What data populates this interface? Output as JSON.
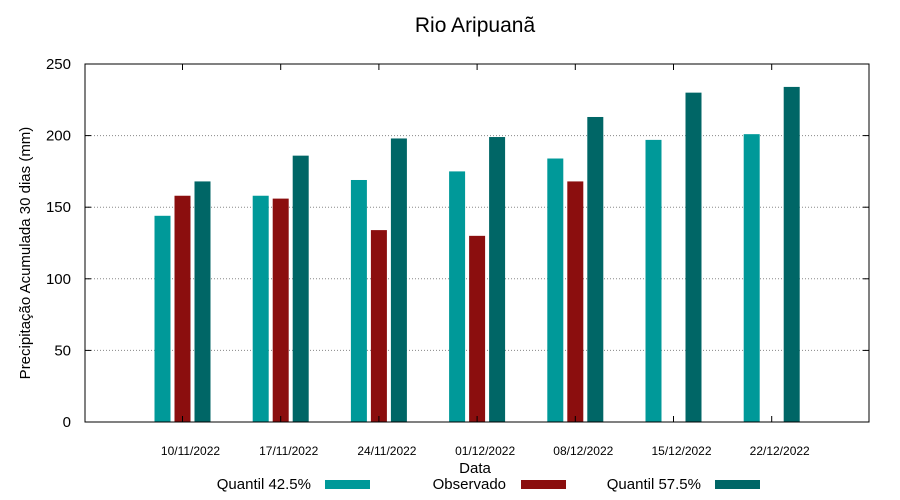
{
  "chart_data": {
    "type": "bar",
    "title": "Rio Aripuanã",
    "xlabel": "Data",
    "ylabel": "Precipitação Acumulada 30 dias (mm)",
    "ylim": [
      0,
      250
    ],
    "yticks": [
      0,
      50,
      100,
      150,
      200,
      250
    ],
    "grid": "horizontal dotted",
    "legend_position": "bottom",
    "categories": [
      "10/11/2022",
      "17/11/2022",
      "24/11/2022",
      "01/12/2022",
      "08/12/2022",
      "15/12/2022",
      "22/12/2022"
    ],
    "series": [
      {
        "name": "Quantil 42.5%",
        "color": "#009999",
        "values": [
          144,
          158,
          169,
          175,
          184,
          197,
          201
        ]
      },
      {
        "name": "Observado",
        "color": "#8b0e0e",
        "values": [
          158,
          156,
          134,
          130,
          168,
          null,
          null
        ]
      },
      {
        "name": "Quantil 57.5%",
        "color": "#006666",
        "values": [
          168,
          186,
          198,
          199,
          213,
          230,
          234
        ]
      }
    ]
  }
}
